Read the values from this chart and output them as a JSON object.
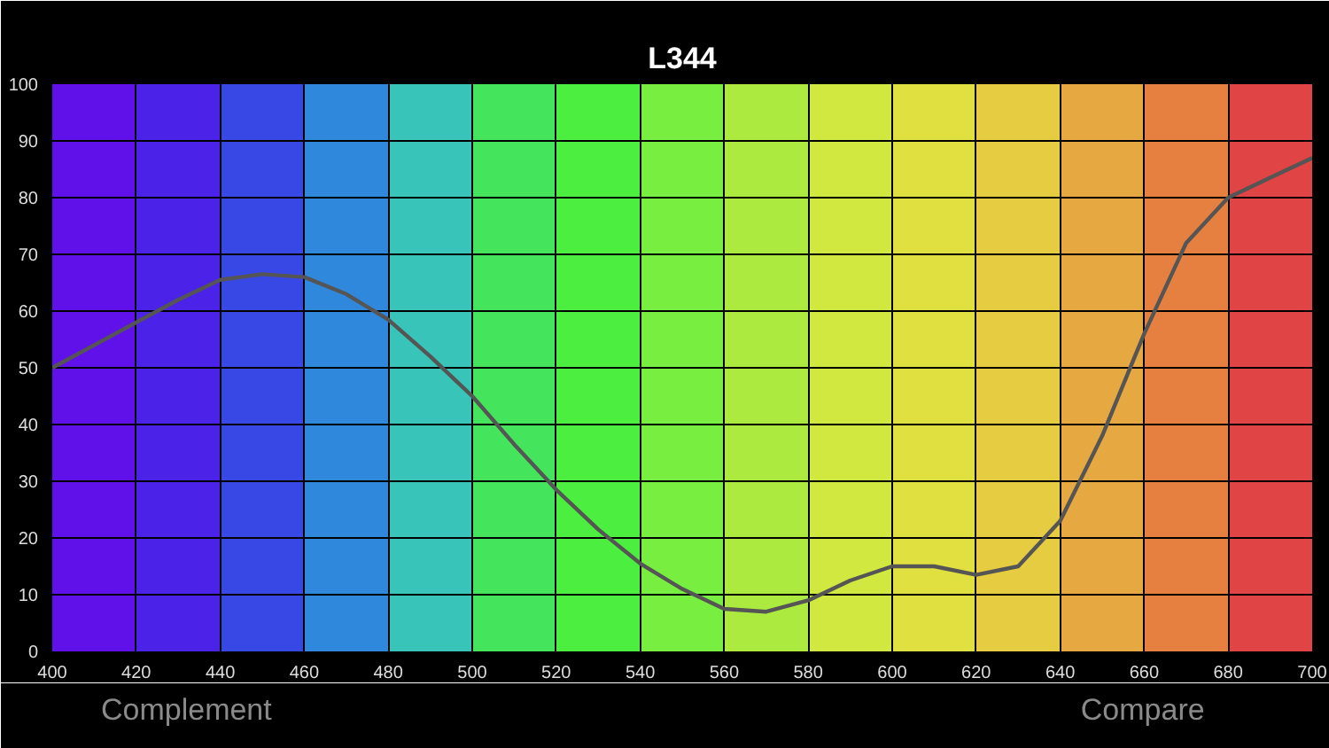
{
  "chart_data": {
    "type": "line",
    "title": "L344",
    "x": [
      400,
      410,
      420,
      430,
      440,
      450,
      460,
      470,
      480,
      490,
      500,
      510,
      520,
      530,
      540,
      550,
      560,
      570,
      580,
      590,
      600,
      610,
      620,
      630,
      640,
      650,
      660,
      670,
      680,
      690,
      700
    ],
    "series": [
      {
        "color": "#555555",
        "values": [
          50,
          54,
          58,
          62,
          65.5,
          66.5,
          66,
          63,
          58.5,
          52,
          45,
          36.5,
          28.5,
          21.5,
          15.5,
          11,
          7.5,
          7,
          9,
          12.5,
          15,
          15,
          13.5,
          15,
          23,
          38,
          56,
          72,
          80,
          83.5,
          87
        ]
      }
    ],
    "xlim": [
      400,
      700
    ],
    "ylim": [
      0,
      100
    ],
    "xticks": [
      400,
      420,
      440,
      460,
      480,
      500,
      520,
      540,
      560,
      580,
      600,
      620,
      640,
      660,
      680,
      700
    ],
    "yticks": [
      0,
      10,
      20,
      30,
      40,
      50,
      60,
      70,
      80,
      90,
      100
    ],
    "grid": true,
    "marker": "none",
    "line_style": "solid",
    "bands": [
      {
        "axis": "x",
        "from": 400,
        "to": 420,
        "color": "#6010e8"
      },
      {
        "axis": "x",
        "from": 420,
        "to": 440,
        "color": "#4a22e8"
      },
      {
        "axis": "x",
        "from": 440,
        "to": 460,
        "color": "#3848e4"
      },
      {
        "axis": "x",
        "from": 460,
        "to": 480,
        "color": "#3088dc"
      },
      {
        "axis": "x",
        "from": 480,
        "to": 500,
        "color": "#38c4b8"
      },
      {
        "axis": "x",
        "from": 500,
        "to": 520,
        "color": "#44e45c"
      },
      {
        "axis": "x",
        "from": 520,
        "to": 540,
        "color": "#4cee40"
      },
      {
        "axis": "x",
        "from": 540,
        "to": 560,
        "color": "#78ee40"
      },
      {
        "axis": "x",
        "from": 560,
        "to": 580,
        "color": "#acea40"
      },
      {
        "axis": "x",
        "from": 580,
        "to": 600,
        "color": "#d0e840"
      },
      {
        "axis": "x",
        "from": 600,
        "to": 620,
        "color": "#e0e040"
      },
      {
        "axis": "x",
        "from": 620,
        "to": 640,
        "color": "#e6cc40"
      },
      {
        "axis": "x",
        "from": 640,
        "to": 660,
        "color": "#e6a840"
      },
      {
        "axis": "x",
        "from": 660,
        "to": 680,
        "color": "#e68040"
      },
      {
        "axis": "x",
        "from": 680,
        "to": 700,
        "color": "#e04444"
      }
    ],
    "annotations": [
      "Complement",
      "Compare"
    ]
  }
}
